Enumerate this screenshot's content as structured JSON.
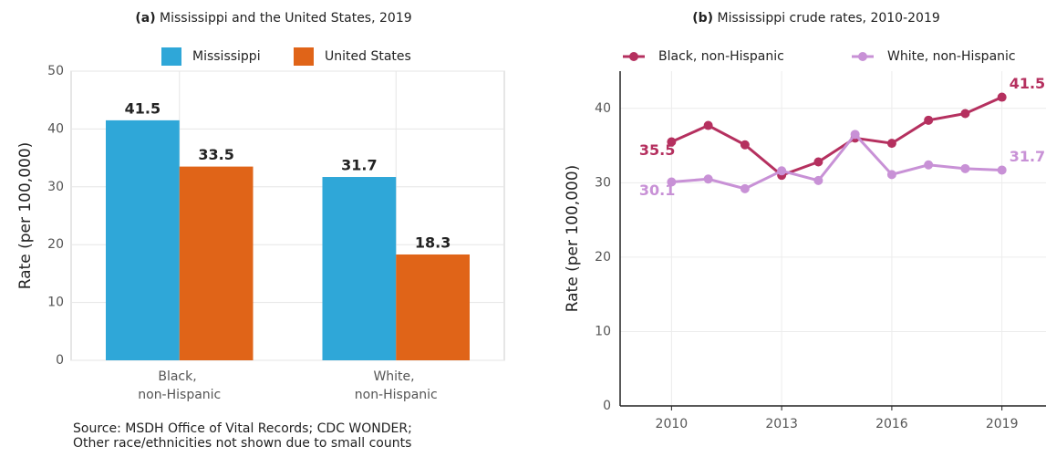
{
  "chart_data": [
    {
      "type": "bar",
      "title_label": "(a)",
      "title": "Mississippi and the United States, 2019",
      "categories": [
        "Black, non-Hispanic",
        "White, non-Hispanic"
      ],
      "series": [
        {
          "name": "Mississippi",
          "color": "#2fa7d8",
          "values": [
            41.5,
            31.7
          ]
        },
        {
          "name": "United States",
          "color": "#e06418",
          "values": [
            33.5,
            18.3
          ]
        }
      ],
      "ylabel": "Rate (per 100,000)",
      "ylim": [
        0,
        50
      ],
      "yticks": [
        0,
        10,
        20,
        30,
        40,
        50
      ],
      "grid": true,
      "legend": "top",
      "note": [
        "Source: MSDH Office of Vital Records; CDC WONDER;",
        "Other race/ethnicities not shown due to small counts"
      ]
    },
    {
      "type": "line",
      "title_label": "(b)",
      "title": "Mississippi crude rates, 2010-2019",
      "x": [
        2010,
        2011,
        2012,
        2013,
        2014,
        2015,
        2016,
        2017,
        2018,
        2019
      ],
      "series": [
        {
          "name": "Black, non-Hispanic",
          "color": "#b5305f",
          "values": [
            35.5,
            37.7,
            35.1,
            31.0,
            32.8,
            36.0,
            35.3,
            38.4,
            39.3,
            41.5
          ],
          "value_labels": [
            "35.5",
            null,
            null,
            null,
            null,
            null,
            null,
            null,
            null,
            "41.5"
          ]
        },
        {
          "name": "White, non-Hispanic",
          "color": "#c891d6",
          "values": [
            30.1,
            30.5,
            29.2,
            31.6,
            30.3,
            36.5,
            31.1,
            32.4,
            31.9,
            31.7
          ],
          "value_labels": [
            "30.1",
            null,
            null,
            null,
            null,
            null,
            null,
            null,
            null,
            "31.7"
          ]
        }
      ],
      "ylabel": "Rate (per 100,000)",
      "xlim": [
        2008.6,
        2020.2
      ],
      "xticks": [
        2010,
        2013,
        2016,
        2019
      ],
      "ylim": [
        0,
        45
      ],
      "yticks": [
        0,
        10,
        20,
        30,
        40
      ],
      "grid": true,
      "legend": "top"
    }
  ]
}
